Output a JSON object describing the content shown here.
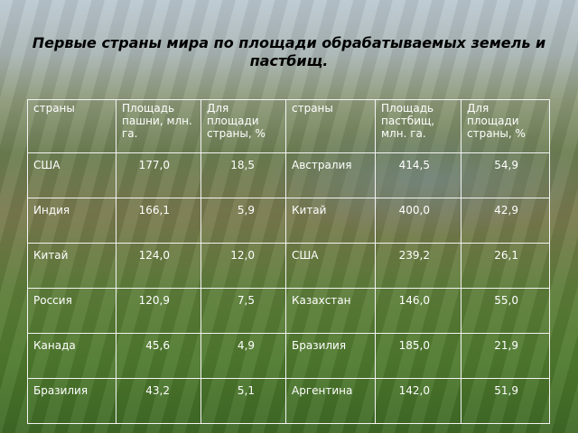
{
  "title": "Первые страны мира по площади обрабатываемых земель и пастбищ.",
  "table": {
    "header": [
      "страны",
      "Площадь пашни, млн. га.",
      "Для площади страны, %",
      "страны",
      "Площадь пастбищ, млн. га.",
      "Для площади страны, %"
    ],
    "rows": [
      [
        "США",
        "177,0",
        "18,5",
        "Австралия",
        "414,5",
        "54,9"
      ],
      [
        "Индия",
        "166,1",
        "5,9",
        "Китай",
        "400,0",
        "42,9"
      ],
      [
        "Китай",
        "124,0",
        "12,0",
        "США",
        "239,2",
        "26,1"
      ],
      [
        "Россия",
        "120,9",
        "7,5",
        "Казахстан",
        "146,0",
        "55,0"
      ],
      [
        "Канада",
        "45,6",
        "4,9",
        "Бразилия",
        "185,0",
        "21,9"
      ],
      [
        "Бразилия",
        "43,2",
        "5,1",
        "Аргентина",
        "142,0",
        "51,9"
      ]
    ]
  }
}
